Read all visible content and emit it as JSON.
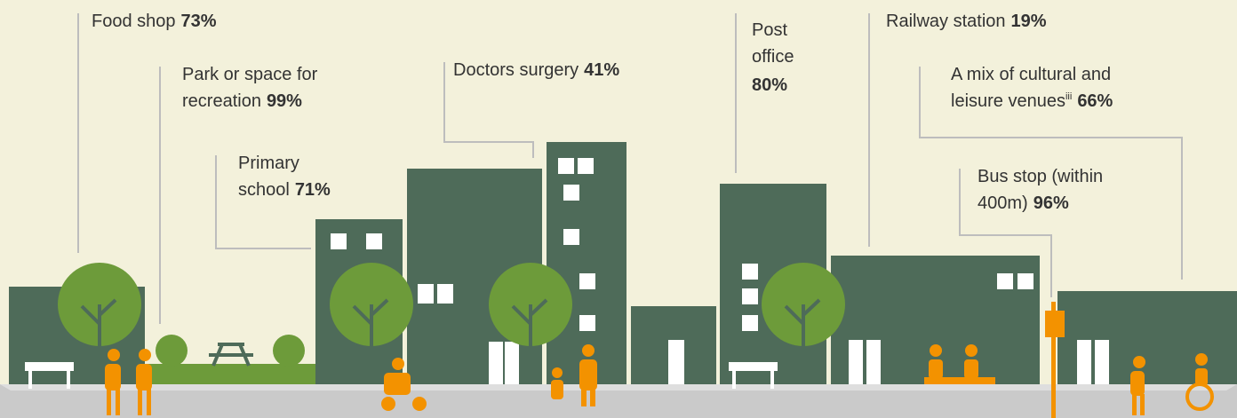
{
  "items": [
    {
      "lines": [
        "Food shop"
      ],
      "value": "73%"
    },
    {
      "lines": [
        "Park or space for",
        "recreation"
      ],
      "value": "99%"
    },
    {
      "lines": [
        "Doctors surgery"
      ],
      "value": "41%"
    },
    {
      "lines": [
        "Primary",
        "school"
      ],
      "value": "71%"
    },
    {
      "lines": [
        "Post",
        "office"
      ],
      "value": "80%"
    },
    {
      "lines": [
        "Railway station"
      ],
      "value": "19%"
    },
    {
      "lines": [
        "A mix of cultural and",
        "leisure venues"
      ],
      "sup": "iii",
      "value": "66%"
    },
    {
      "lines": [
        "Bus stop (within",
        "400m)"
      ],
      "value": "96%"
    }
  ]
}
